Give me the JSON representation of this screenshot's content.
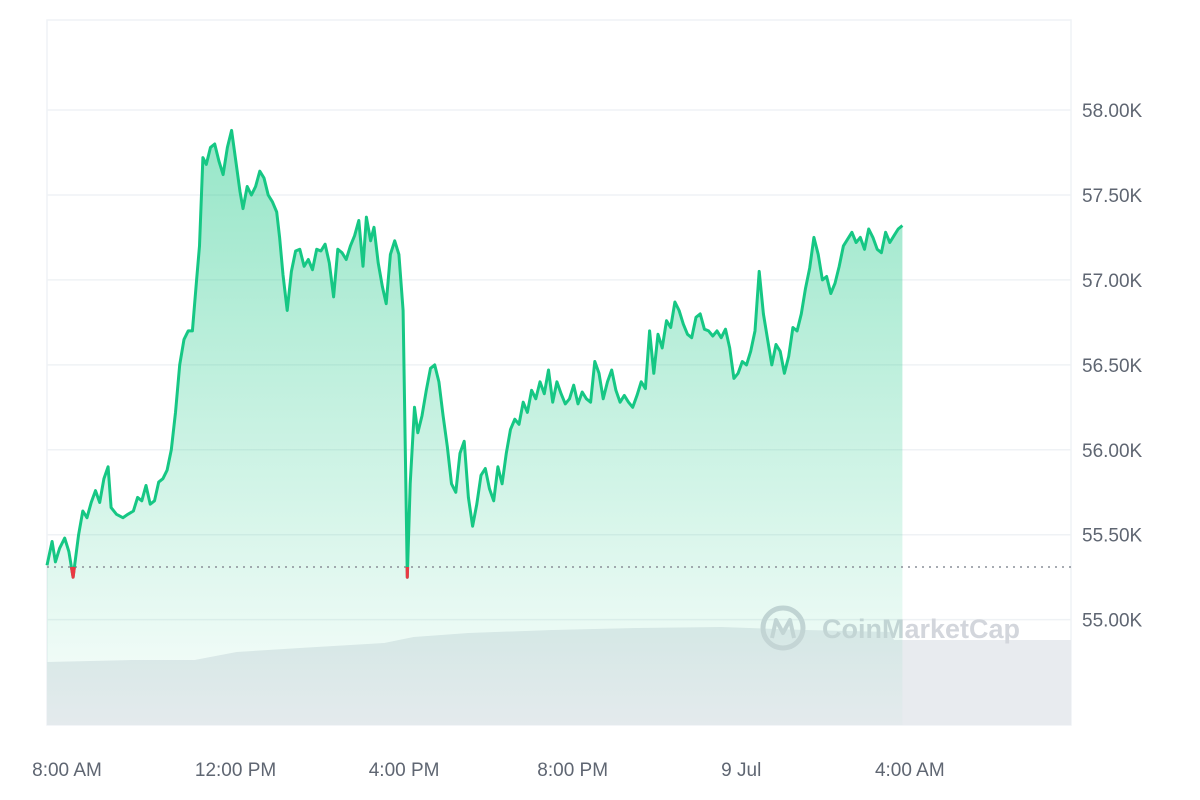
{
  "chart_data": {
    "type": "area",
    "yticks": [
      "58.00K",
      "57.50K",
      "57.00K",
      "56.50K",
      "56.00K",
      "55.50K",
      "55.00K"
    ],
    "ytick_values": [
      58000,
      57500,
      57000,
      56500,
      56000,
      55500,
      55000
    ],
    "xticks": [
      "8:00 AM",
      "12:00 PM",
      "4:00 PM",
      "8:00 PM",
      "9 Jul",
      "4:00 AM"
    ],
    "xtick_hours": [
      8,
      12,
      16,
      20,
      24,
      28
    ],
    "ylim": [
      54380,
      58530
    ],
    "xlim_hours": [
      8,
      32.3
    ],
    "reference_line": 55310,
    "grid": true,
    "watermark": "CoinMarketCap",
    "colors": {
      "line": "#16c784",
      "min_marker": "#ea3943",
      "grid": "#eff2f5",
      "volume": "#e8ebef",
      "reference": "#8a8f99"
    },
    "series": [
      {
        "points": [
          [
            8.0,
            55320
          ],
          [
            8.12,
            55460
          ],
          [
            8.2,
            55340
          ],
          [
            8.3,
            55420
          ],
          [
            8.42,
            55480
          ],
          [
            8.52,
            55400
          ],
          [
            8.62,
            55250
          ],
          [
            8.75,
            55500
          ],
          [
            8.85,
            55640
          ],
          [
            8.95,
            55600
          ],
          [
            9.05,
            55690
          ],
          [
            9.15,
            55760
          ],
          [
            9.25,
            55690
          ],
          [
            9.35,
            55830
          ],
          [
            9.45,
            55900
          ],
          [
            9.52,
            55660
          ],
          [
            9.65,
            55620
          ],
          [
            9.8,
            55600
          ],
          [
            9.92,
            55620
          ],
          [
            10.05,
            55640
          ],
          [
            10.15,
            55720
          ],
          [
            10.25,
            55700
          ],
          [
            10.35,
            55790
          ],
          [
            10.45,
            55680
          ],
          [
            10.55,
            55700
          ],
          [
            10.65,
            55810
          ],
          [
            10.75,
            55830
          ],
          [
            10.85,
            55880
          ],
          [
            10.95,
            56000
          ],
          [
            11.05,
            56220
          ],
          [
            11.15,
            56500
          ],
          [
            11.25,
            56650
          ],
          [
            11.35,
            56700
          ],
          [
            11.45,
            56700
          ],
          [
            11.55,
            57000
          ],
          [
            11.62,
            57200
          ],
          [
            11.7,
            57720
          ],
          [
            11.78,
            57680
          ],
          [
            11.88,
            57780
          ],
          [
            11.98,
            57800
          ],
          [
            12.08,
            57700
          ],
          [
            12.18,
            57620
          ],
          [
            12.28,
            57780
          ],
          [
            12.38,
            57880
          ],
          [
            12.48,
            57700
          ],
          [
            12.58,
            57520
          ],
          [
            12.65,
            57420
          ],
          [
            12.75,
            57550
          ],
          [
            12.85,
            57500
          ],
          [
            12.95,
            57550
          ],
          [
            13.05,
            57640
          ],
          [
            13.15,
            57600
          ],
          [
            13.25,
            57500
          ],
          [
            13.35,
            57460
          ],
          [
            13.45,
            57400
          ],
          [
            13.52,
            57250
          ],
          [
            13.6,
            57030
          ],
          [
            13.7,
            56820
          ],
          [
            13.8,
            57050
          ],
          [
            13.9,
            57170
          ],
          [
            14.0,
            57180
          ],
          [
            14.1,
            57080
          ],
          [
            14.2,
            57120
          ],
          [
            14.3,
            57060
          ],
          [
            14.4,
            57180
          ],
          [
            14.5,
            57170
          ],
          [
            14.6,
            57210
          ],
          [
            14.7,
            57100
          ],
          [
            14.8,
            56900
          ],
          [
            14.9,
            57180
          ],
          [
            15.0,
            57160
          ],
          [
            15.1,
            57120
          ],
          [
            15.2,
            57200
          ],
          [
            15.3,
            57260
          ],
          [
            15.4,
            57350
          ],
          [
            15.5,
            57080
          ],
          [
            15.58,
            57370
          ],
          [
            15.68,
            57230
          ],
          [
            15.76,
            57310
          ],
          [
            15.86,
            57100
          ],
          [
            15.96,
            56960
          ],
          [
            16.05,
            56860
          ],
          [
            16.15,
            57150
          ],
          [
            16.25,
            57230
          ],
          [
            16.35,
            57150
          ],
          [
            16.45,
            56820
          ],
          [
            16.55,
            55250
          ],
          [
            16.62,
            55800
          ],
          [
            16.72,
            56250
          ],
          [
            16.8,
            56100
          ],
          [
            16.9,
            56200
          ],
          [
            17.0,
            56350
          ],
          [
            17.1,
            56480
          ],
          [
            17.2,
            56500
          ],
          [
            17.3,
            56400
          ],
          [
            17.4,
            56200
          ],
          [
            17.5,
            56020
          ],
          [
            17.6,
            55800
          ],
          [
            17.7,
            55750
          ],
          [
            17.8,
            55980
          ],
          [
            17.9,
            56050
          ],
          [
            18.0,
            55720
          ],
          [
            18.1,
            55550
          ],
          [
            18.2,
            55680
          ],
          [
            18.3,
            55850
          ],
          [
            18.4,
            55890
          ],
          [
            18.5,
            55770
          ],
          [
            18.6,
            55700
          ],
          [
            18.7,
            55900
          ],
          [
            18.8,
            55800
          ],
          [
            18.9,
            55980
          ],
          [
            19.0,
            56120
          ],
          [
            19.1,
            56180
          ],
          [
            19.2,
            56150
          ],
          [
            19.3,
            56280
          ],
          [
            19.4,
            56220
          ],
          [
            19.5,
            56350
          ],
          [
            19.6,
            56300
          ],
          [
            19.7,
            56400
          ],
          [
            19.8,
            56330
          ],
          [
            19.9,
            56470
          ],
          [
            20.0,
            56280
          ],
          [
            20.1,
            56400
          ],
          [
            20.2,
            56330
          ],
          [
            20.3,
            56270
          ],
          [
            20.4,
            56300
          ],
          [
            20.5,
            56380
          ],
          [
            20.6,
            56270
          ],
          [
            20.7,
            56340
          ],
          [
            20.8,
            56300
          ],
          [
            20.9,
            56280
          ],
          [
            21.0,
            56520
          ],
          [
            21.1,
            56450
          ],
          [
            21.2,
            56300
          ],
          [
            21.3,
            56400
          ],
          [
            21.4,
            56470
          ],
          [
            21.5,
            56350
          ],
          [
            21.6,
            56280
          ],
          [
            21.7,
            56320
          ],
          [
            21.8,
            56280
          ],
          [
            21.9,
            56250
          ],
          [
            22.0,
            56320
          ],
          [
            22.1,
            56400
          ],
          [
            22.2,
            56360
          ],
          [
            22.3,
            56700
          ],
          [
            22.4,
            56450
          ],
          [
            22.5,
            56680
          ],
          [
            22.6,
            56600
          ],
          [
            22.7,
            56760
          ],
          [
            22.8,
            56720
          ],
          [
            22.9,
            56870
          ],
          [
            23.0,
            56820
          ],
          [
            23.1,
            56740
          ],
          [
            23.2,
            56680
          ],
          [
            23.3,
            56660
          ],
          [
            23.4,
            56780
          ],
          [
            23.5,
            56800
          ],
          [
            23.6,
            56710
          ],
          [
            23.7,
            56700
          ],
          [
            23.8,
            56670
          ],
          [
            23.9,
            56700
          ],
          [
            24.0,
            56660
          ],
          [
            24.1,
            56710
          ],
          [
            24.2,
            56600
          ],
          [
            24.3,
            56420
          ],
          [
            24.4,
            56450
          ],
          [
            24.5,
            56520
          ],
          [
            24.6,
            56500
          ],
          [
            24.7,
            56580
          ],
          [
            24.8,
            56700
          ],
          [
            24.9,
            57050
          ],
          [
            25.0,
            56800
          ],
          [
            25.1,
            56650
          ],
          [
            25.2,
            56500
          ],
          [
            25.3,
            56620
          ],
          [
            25.4,
            56580
          ],
          [
            25.5,
            56450
          ],
          [
            25.6,
            56550
          ],
          [
            25.7,
            56720
          ],
          [
            25.8,
            56700
          ],
          [
            25.9,
            56800
          ],
          [
            26.0,
            56950
          ],
          [
            26.1,
            57070
          ],
          [
            26.2,
            57250
          ],
          [
            26.3,
            57150
          ],
          [
            26.4,
            57000
          ],
          [
            26.5,
            57020
          ],
          [
            26.6,
            56920
          ],
          [
            26.7,
            56980
          ],
          [
            26.8,
            57080
          ],
          [
            26.9,
            57200
          ],
          [
            27.0,
            57240
          ],
          [
            27.1,
            57280
          ],
          [
            27.2,
            57220
          ],
          [
            27.3,
            57250
          ],
          [
            27.4,
            57180
          ],
          [
            27.5,
            57300
          ],
          [
            27.6,
            57250
          ],
          [
            27.7,
            57180
          ],
          [
            27.8,
            57160
          ],
          [
            27.9,
            57280
          ],
          [
            28.0,
            57220
          ],
          [
            28.1,
            57260
          ],
          [
            28.2,
            57300
          ],
          [
            28.3,
            57320
          ]
        ]
      }
    ]
  }
}
